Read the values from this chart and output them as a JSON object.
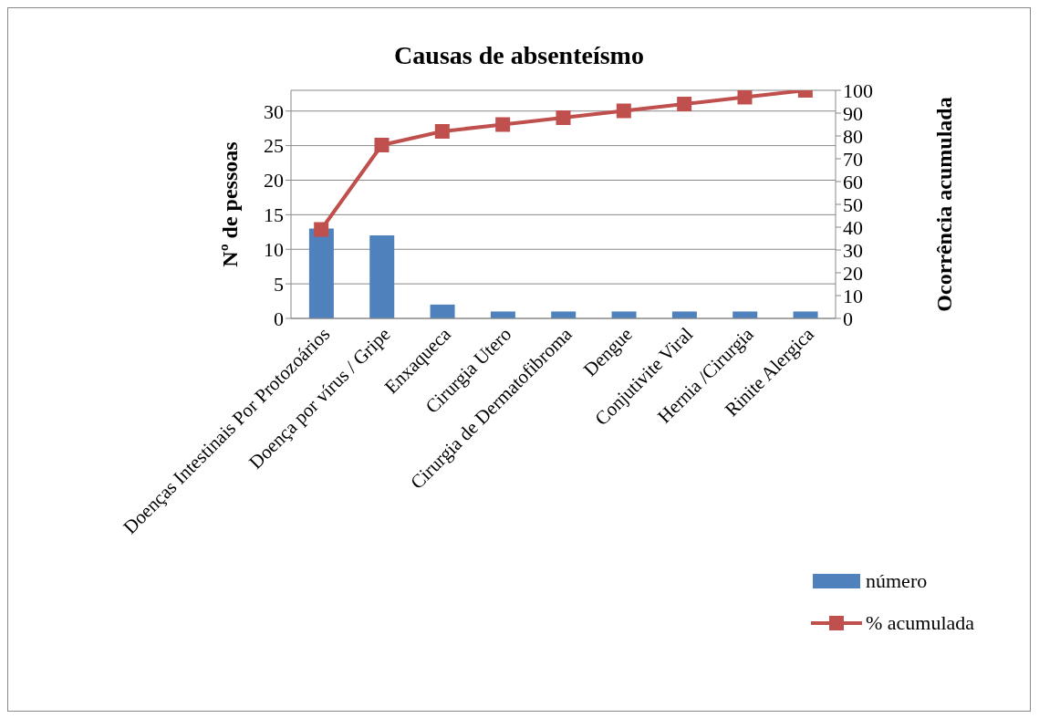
{
  "chart_data": {
    "type": "bar",
    "title": "Causas de absenteísmo",
    "categories": [
      "Doenças Intestinais Por Protozoários",
      "Doença por vírus / Gripe",
      "Enxaqueca",
      "Cirurgia Utero",
      "Cirurgia de Dermatofibroma",
      "Dengue",
      "Conjutivite Viral",
      "Hernia /Cirurgia",
      "Rinite Alergica"
    ],
    "series": [
      {
        "name": "número",
        "color": "#4f81bd",
        "values": [
          13,
          12,
          2,
          1,
          1,
          1,
          1,
          1,
          1
        ]
      },
      {
        "name": "% acumulada",
        "type": "line",
        "axis": "y2",
        "color": "#c0504d",
        "values": [
          39,
          76,
          82,
          85,
          88,
          91,
          94,
          97,
          100
        ]
      }
    ],
    "ylabel": "Nº de pessoas",
    "y2label": "Ocorrência acumulada",
    "ylim": [
      0,
      33
    ],
    "yticks": [
      0,
      5,
      10,
      15,
      20,
      25,
      30
    ],
    "y2lim": [
      0,
      100
    ],
    "y2ticks": [
      0,
      10,
      20,
      30,
      40,
      50,
      60,
      70,
      80,
      90,
      100
    ],
    "grid": "y",
    "legend": "bottom right",
    "marker": "square"
  }
}
